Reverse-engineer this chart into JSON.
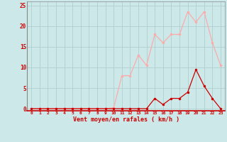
{
  "x": [
    0,
    1,
    2,
    3,
    4,
    5,
    6,
    7,
    8,
    9,
    10,
    11,
    12,
    13,
    14,
    15,
    16,
    17,
    18,
    19,
    20,
    21,
    22,
    23
  ],
  "rafales": [
    0,
    0,
    0,
    0,
    0,
    0,
    0,
    0,
    0,
    0,
    0.2,
    8,
    8,
    13,
    10.5,
    18,
    16,
    18,
    18,
    23.5,
    21,
    23.5,
    16,
    10.5
  ],
  "vent_moyen": [
    0,
    0,
    0,
    0,
    0,
    0,
    0,
    0,
    0,
    0,
    0,
    0,
    0,
    0,
    0,
    2.5,
    1,
    2.5,
    2.5,
    4,
    9.5,
    5.5,
    2.5,
    0
  ],
  "rafales_color": "#ffaaaa",
  "vent_moyen_color": "#cc0000",
  "bg_color": "#cce8e8",
  "grid_color": "#aacccc",
  "xlabel": "Vent moyen/en rafales ( km/h )",
  "ylabel_ticks": [
    0,
    5,
    10,
    15,
    20,
    25
  ],
  "xlim": [
    -0.5,
    23.5
  ],
  "ylim": [
    -0.5,
    26
  ],
  "title": ""
}
